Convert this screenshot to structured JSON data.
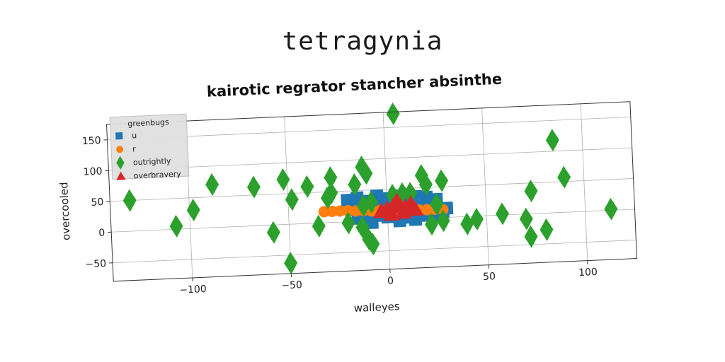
{
  "super_title": "tetragynia",
  "chart_data": {
    "type": "scatter",
    "title": "kairotic regrator stancher absinthe",
    "xlabel": "walleyes",
    "ylabel": "overcooled",
    "xlim": [
      -140,
      125
    ],
    "ylim": [
      -80,
      175
    ],
    "xticks": [
      -100,
      -50,
      0,
      50,
      100
    ],
    "xtick_labels": [
      "−100",
      "−50",
      "0",
      "50",
      "100"
    ],
    "yticks": [
      -50,
      0,
      50,
      100,
      150
    ],
    "ytick_labels": [
      "−50",
      "0",
      "50",
      "100",
      "150"
    ],
    "grid": true,
    "legend": {
      "title": "greenbugs",
      "placement": "top-left"
    },
    "series": [
      {
        "name": "u",
        "marker": "square",
        "color": "#1f77b4",
        "points": [
          [
            -20,
            35
          ],
          [
            -15,
            38
          ],
          [
            -10,
            32
          ],
          [
            -5,
            40
          ],
          [
            0,
            35
          ],
          [
            5,
            38
          ],
          [
            10,
            30
          ],
          [
            15,
            36
          ],
          [
            20,
            34
          ],
          [
            25,
            30
          ],
          [
            30,
            15
          ],
          [
            -18,
            20
          ],
          [
            -12,
            15
          ],
          [
            -8,
            22
          ],
          [
            -2,
            18
          ],
          [
            2,
            25
          ],
          [
            8,
            18
          ],
          [
            12,
            22
          ],
          [
            18,
            15
          ],
          [
            22,
            20
          ],
          [
            28,
            10
          ],
          [
            -15,
            5
          ],
          [
            -10,
            2
          ],
          [
            -5,
            8
          ],
          [
            0,
            5
          ],
          [
            5,
            10
          ],
          [
            10,
            3
          ],
          [
            15,
            8
          ],
          [
            20,
            5
          ],
          [
            25,
            2
          ],
          [
            -5,
            25
          ],
          [
            3,
            28
          ],
          [
            12,
            12
          ],
          [
            -14,
            28
          ],
          [
            18,
            26
          ],
          [
            6,
            -2
          ],
          [
            -8,
            -3
          ],
          [
            14,
            -1
          ]
        ]
      },
      {
        "name": "r",
        "marker": "circle",
        "color": "#ff7f0e",
        "points": [
          [
            -32,
            18
          ],
          [
            -28,
            18
          ],
          [
            -24,
            18
          ],
          [
            -20,
            18
          ],
          [
            -16,
            17
          ],
          [
            -12,
            17
          ],
          [
            -8,
            16
          ],
          [
            -4,
            16
          ],
          [
            0,
            16
          ],
          [
            4,
            15
          ],
          [
            8,
            15
          ],
          [
            12,
            15
          ],
          [
            16,
            14
          ],
          [
            20,
            14
          ],
          [
            24,
            14
          ],
          [
            28,
            13
          ]
        ]
      },
      {
        "name": "outrightly",
        "marker": "thin_diamond",
        "color": "#2ca02c",
        "points": [
          [
            5,
            172
          ],
          [
            -130,
            50
          ],
          [
            -107,
            5
          ],
          [
            -98,
            30
          ],
          [
            -88,
            70
          ],
          [
            -67,
            63
          ],
          [
            -58,
            -12
          ],
          [
            -52,
            73
          ],
          [
            -50,
            -63
          ],
          [
            -48,
            40
          ],
          [
            -40,
            60
          ],
          [
            -35,
            -5
          ],
          [
            -30,
            40
          ],
          [
            -28,
            48
          ],
          [
            -28,
            73
          ],
          [
            -20,
            -2
          ],
          [
            -16,
            60
          ],
          [
            -13,
            -10
          ],
          [
            -12,
            88
          ],
          [
            -10,
            77
          ],
          [
            -10,
            -30
          ],
          [
            -12,
            25
          ],
          [
            -8,
            30
          ],
          [
            -8,
            -38
          ],
          [
            3,
            40
          ],
          [
            8,
            42
          ],
          [
            12,
            42
          ],
          [
            18,
            70
          ],
          [
            20,
            55
          ],
          [
            22,
            -10
          ],
          [
            25,
            22
          ],
          [
            28,
            -5
          ],
          [
            28,
            60
          ],
          [
            40,
            -12
          ],
          [
            45,
            -5
          ],
          [
            58,
            2
          ],
          [
            70,
            -8
          ],
          [
            72,
            -37
          ],
          [
            73,
            37
          ],
          [
            80,
            -27
          ],
          [
            85,
            118
          ],
          [
            90,
            57
          ],
          [
            113,
            2
          ]
        ]
      },
      {
        "name": "overbravery",
        "marker": "triangle",
        "color": "#d62728",
        "points": [
          [
            0,
            18
          ],
          [
            3,
            22
          ],
          [
            6,
            25
          ],
          [
            9,
            20
          ],
          [
            12,
            25
          ],
          [
            -3,
            15
          ],
          [
            2,
            10
          ],
          [
            8,
            12
          ],
          [
            5,
            30
          ],
          [
            14,
            16
          ]
        ]
      }
    ]
  }
}
